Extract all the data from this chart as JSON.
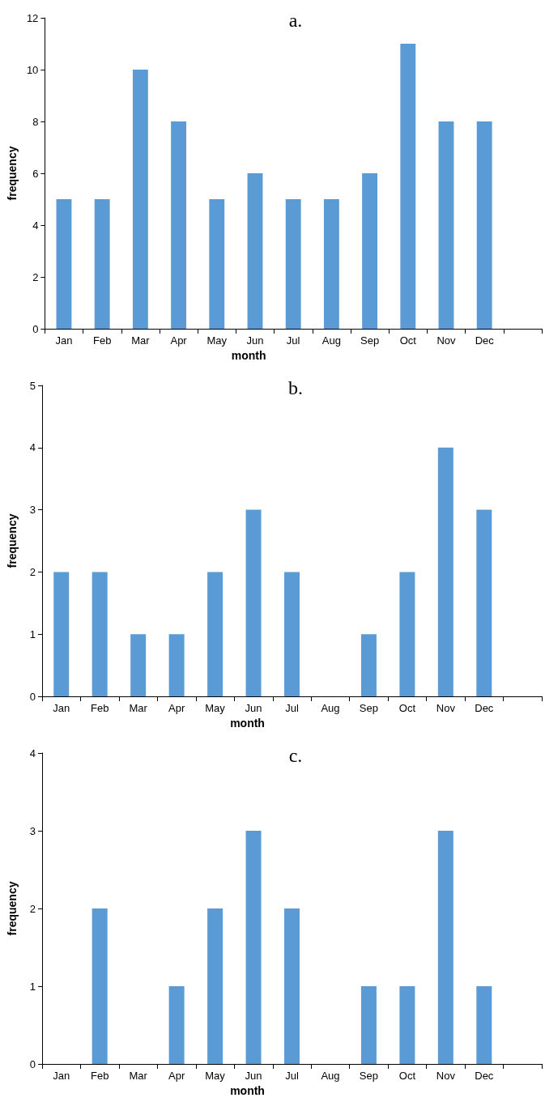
{
  "chart_data": [
    {
      "type": "bar",
      "title": "a.",
      "xlabel": "month",
      "ylabel": "frequency",
      "categories": [
        "Jan",
        "Feb",
        "Mar",
        "Apr",
        "May",
        "Jun",
        "Jul",
        "Aug",
        "Sep",
        "Oct",
        "Nov",
        "Dec",
        null
      ],
      "values": [
        5,
        5,
        10,
        8,
        5,
        6,
        5,
        5,
        6,
        11,
        8,
        8,
        null
      ],
      "color": "#5b9bd5",
      "ylim": [
        0,
        12
      ],
      "yticks": [
        0,
        2,
        4,
        6,
        8,
        10,
        12
      ],
      "grid": false
    },
    {
      "type": "bar",
      "title": "b.",
      "xlabel": "month",
      "ylabel": "frequency",
      "categories": [
        "Jan",
        "Feb",
        "Mar",
        "Apr",
        "May",
        "Jun",
        "Jul",
        "Aug",
        "Sep",
        "Oct",
        "Nov",
        "Dec",
        null
      ],
      "values": [
        2,
        2,
        1,
        1,
        2,
        3,
        2,
        0,
        1,
        2,
        4,
        3,
        null
      ],
      "color": "#5b9bd5",
      "ylim": [
        0,
        5
      ],
      "yticks": [
        0,
        1,
        2,
        3,
        4,
        5
      ],
      "grid": false
    },
    {
      "type": "bar",
      "title": "c.",
      "xlabel": "month",
      "ylabel": "frequency",
      "categories": [
        "Jan",
        "Feb",
        "Mar",
        "Apr",
        "May",
        "Jun",
        "Jul",
        "Aug",
        "Sep",
        "Oct",
        "Nov",
        "Dec",
        null
      ],
      "values": [
        0,
        2,
        0,
        1,
        2,
        3,
        2,
        0,
        1,
        1,
        3,
        1,
        null
      ],
      "color": "#5b9bd5",
      "ylim": [
        0,
        4
      ],
      "yticks": [
        0,
        1,
        2,
        3,
        4
      ],
      "grid": false
    }
  ]
}
